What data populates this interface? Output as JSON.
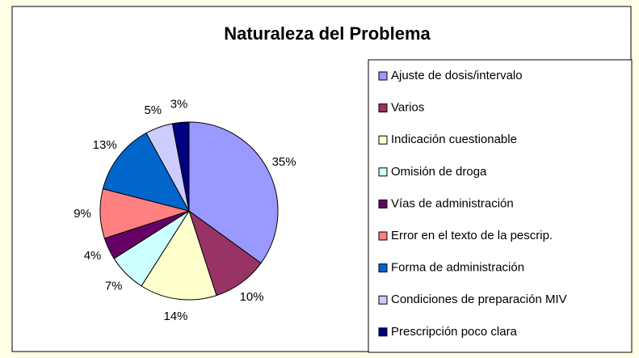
{
  "chart_data": {
    "type": "pie",
    "title": "Naturaleza del Problema",
    "categories": [
      "Ajuste de dosis/intervalo",
      "Varios",
      "Indicación cuestionable",
      "Omisión de droga",
      "Vías de administración",
      "Error en el texto de la pescrip.",
      "Forma de administración",
      "Condiciones de preparación MIV",
      "Prescripción poco clara"
    ],
    "values": [
      35,
      10,
      14,
      7,
      4,
      9,
      13,
      5,
      3
    ],
    "value_labels": [
      "35%",
      "10%",
      "14%",
      "7%",
      "4%",
      "9%",
      "13%",
      "5%",
      "3%"
    ],
    "colors": [
      "#9999FF",
      "#993366",
      "#FFFFCC",
      "#CCFFFF",
      "#660066",
      "#FF8080",
      "#0066CC",
      "#CCCCFF",
      "#000080"
    ],
    "legend": "right"
  }
}
